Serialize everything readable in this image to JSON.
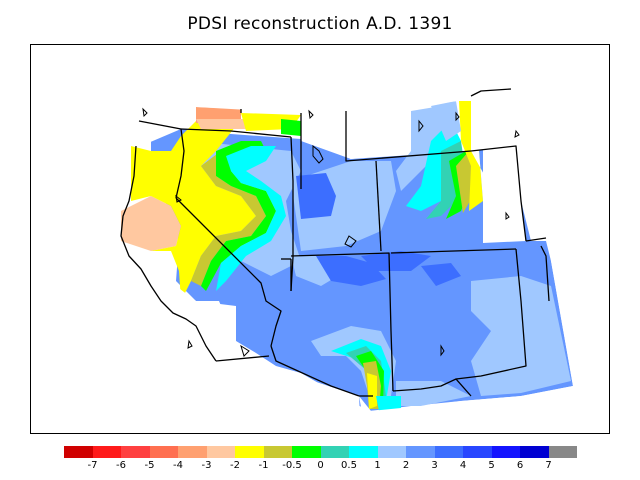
{
  "title": "PDSI reconstruction A.D. 1391",
  "legend": {
    "colors": [
      "#d00000",
      "#ff1a1a",
      "#ff4040",
      "#ff6f50",
      "#ffa070",
      "#ffc8a0",
      "#ffff00",
      "#c8c832",
      "#00ff00",
      "#32d2b4",
      "#00ffff",
      "#a0c8ff",
      "#6496ff",
      "#3c6eff",
      "#2846ff",
      "#1414ff",
      "#0000d2",
      "#888888"
    ],
    "labels": [
      "-7",
      "-6",
      "-5",
      "-4",
      "-3",
      "-2",
      "-1",
      "-0.5",
      "0",
      "0.5",
      "1",
      "2",
      "3",
      "4",
      "5",
      "6",
      "7"
    ]
  }
}
